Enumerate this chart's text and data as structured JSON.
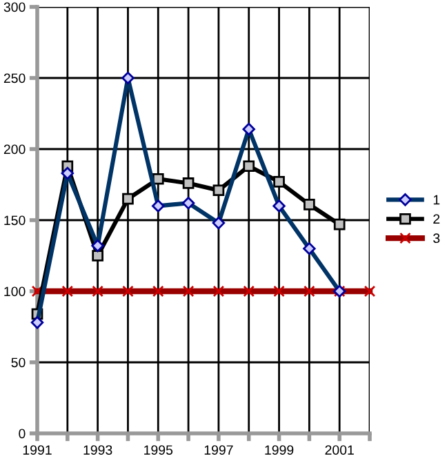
{
  "chart_data": {
    "type": "line",
    "x": [
      1991,
      1992,
      1993,
      1994,
      1995,
      1996,
      1997,
      1998,
      1999,
      2000,
      2001,
      2002
    ],
    "series": [
      {
        "name": "1",
        "color": "#003366",
        "marker": "diamond",
        "values": [
          78,
          183,
          132,
          250,
          160,
          162,
          148,
          214,
          160,
          130,
          100,
          null
        ]
      },
      {
        "name": "2",
        "color": "#000000",
        "marker": "square",
        "values": [
          84,
          188,
          125,
          165,
          179,
          176,
          171,
          188,
          177,
          161,
          147,
          null
        ]
      },
      {
        "name": "3",
        "color": "#990000",
        "marker": "cross",
        "values": [
          100,
          100,
          100,
          100,
          100,
          100,
          100,
          100,
          100,
          100,
          100,
          100
        ]
      }
    ],
    "xlim": [
      1991,
      2002
    ],
    "xticks": [
      1991,
      {
        "value": 1992,
        "label": null
      },
      1993,
      {
        "value": 1994,
        "label": null
      },
      1995,
      {
        "value": 1996,
        "label": null
      },
      1997,
      {
        "value": 1998,
        "label": null
      },
      1999,
      {
        "value": 2000,
        "label": null
      },
      2001,
      {
        "value": 2002,
        "label": null
      }
    ],
    "ylim": [
      0,
      300
    ],
    "yticks": [
      0,
      50,
      100,
      150,
      200,
      250,
      300
    ],
    "grid": true,
    "legend": "right",
    "line_style": "solid"
  }
}
